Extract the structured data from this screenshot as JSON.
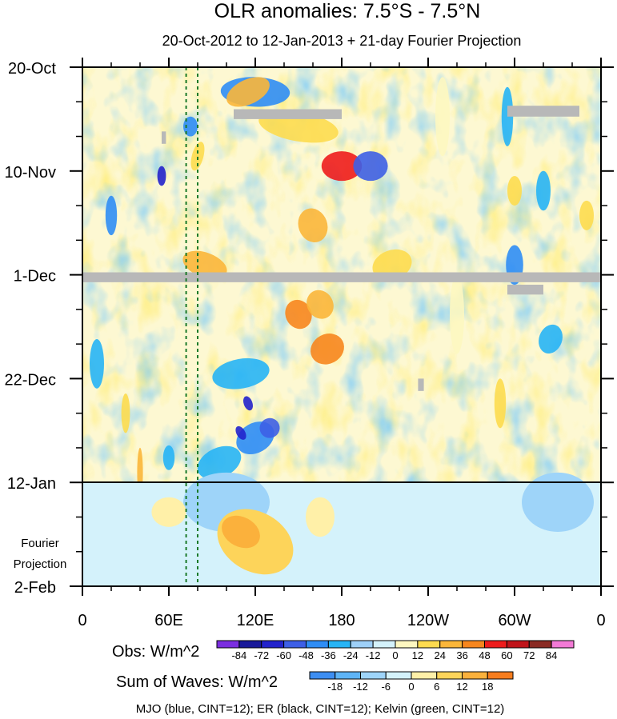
{
  "chart_data": {
    "type": "heatmap",
    "title": "OLR anomalies: 7.5°S - 7.5°N",
    "subtitle": "20-Oct-2012 to 12-Jan-2013 + 21-day Fourier Projection",
    "x_axis": {
      "ticks": [
        "0",
        "60E",
        "120E",
        "180",
        "120W",
        "60W",
        "0"
      ],
      "range_deg_east": [
        0,
        360
      ]
    },
    "y_axis": {
      "ticks": [
        "20-Oct",
        "10-Nov",
        "1-Dec",
        "22-Dec",
        "12-Jan",
        "2-Feb"
      ],
      "range_days_from_start": [
        0,
        105
      ],
      "observation_end_day": 84
    },
    "projection_label": [
      "Fourier",
      "Projection"
    ],
    "reference_longitudes_deg": [
      72,
      80
    ],
    "obs_colorbar": {
      "label": "Obs: W/m^2",
      "tick_labels": [
        "-84",
        "-72",
        "-60",
        "-48",
        "-36",
        "-24",
        "-12",
        "0",
        "12",
        "24",
        "36",
        "48",
        "60",
        "72",
        "84"
      ],
      "colors": [
        "#7b2ee0",
        "#1a1a9a",
        "#2222cc",
        "#3d5fe6",
        "#2f8df5",
        "#27b4f5",
        "#9ed0f8",
        "#d4f2fb",
        "#fdf7c0",
        "#fddb4f",
        "#fbb63a",
        "#f7861e",
        "#ee1c1c",
        "#c0141a",
        "#8a2b24",
        "#f37ad6"
      ]
    },
    "waves_colorbar": {
      "label": "Sum of Waves: W/m^2",
      "tick_labels": [
        "-18",
        "-12",
        "-6",
        "0",
        "6",
        "12",
        "18"
      ],
      "colors": [
        "#3d8ef2",
        "#5eb4f7",
        "#9ed4f9",
        "#d4f2fb",
        "#fff0a8",
        "#fdd45a",
        "#fbb13c",
        "#f77d1e"
      ]
    },
    "legend_text": "MJO (blue, CINT=12); ER (black, CINT=12); Kelvin (green, CINT=12)",
    "colors": {
      "mjo": "#1a1ae0",
      "er": "#000000",
      "kelvin": "#22dd22",
      "missing": "#b8b8b8"
    }
  }
}
